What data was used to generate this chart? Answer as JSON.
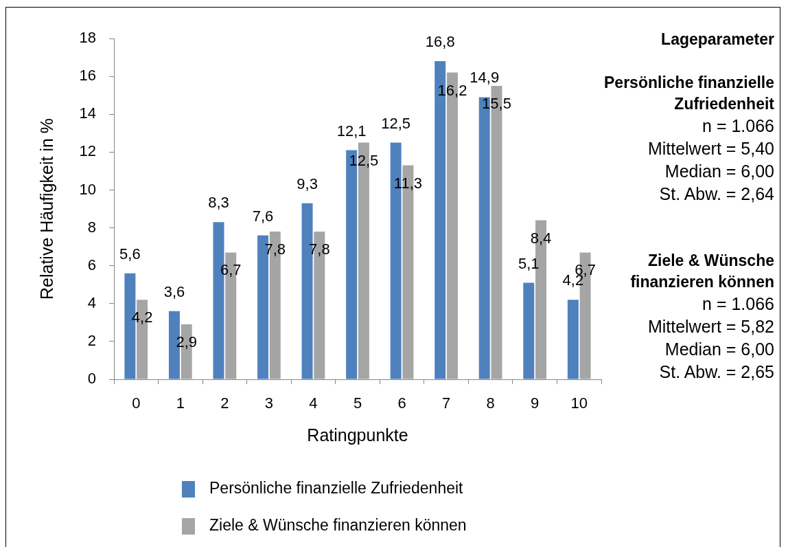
{
  "chart_data": {
    "type": "bar",
    "xlabel": "Ratingpunkte",
    "ylabel": "Relative Häufigkeit in %",
    "categories": [
      "0",
      "1",
      "2",
      "3",
      "4",
      "5",
      "6",
      "7",
      "8",
      "9",
      "10"
    ],
    "series": [
      {
        "name": "Persönliche finanzielle Zufriedenheit",
        "color": "#4f81bd",
        "values": [
          5.6,
          3.6,
          8.3,
          7.6,
          9.3,
          12.1,
          12.5,
          16.8,
          14.9,
          5.1,
          4.2
        ],
        "value_labels": [
          "5,6",
          "3,6",
          "8,3",
          "7,6",
          "9,3",
          "12,1",
          "12,5",
          "16,8",
          "14,9",
          "5,1",
          "4,2"
        ]
      },
      {
        "name": "Ziele & Wünsche finanzieren können",
        "color": "#a5a5a5",
        "values": [
          4.2,
          2.9,
          6.7,
          7.8,
          7.8,
          12.5,
          11.3,
          16.2,
          15.5,
          8.4,
          6.7
        ],
        "value_labels": [
          "4,2",
          "2,9",
          "6,7",
          "7,8",
          "7,8",
          "12,5",
          "11,3",
          "16,2",
          "15,5",
          "8,4",
          "6,7"
        ]
      }
    ],
    "ylim": [
      0,
      18
    ],
    "yticks": [
      0,
      2,
      4,
      6,
      8,
      10,
      12,
      14,
      16,
      18
    ],
    "grid": false,
    "legend": "bottom",
    "annotations": [
      "Lageparameter",
      "Persönliche finanzielle Zufriedenheit",
      "n = 1.066",
      "Mittelwert = 5,40",
      "Median = 6,00",
      "St. Abw. = 2,64",
      "Ziele & Wünsche finanzieren können",
      "n = 1.066",
      "Mittelwert = 5,82",
      "Median = 6,00",
      "St. Abw. = 2,65"
    ]
  }
}
